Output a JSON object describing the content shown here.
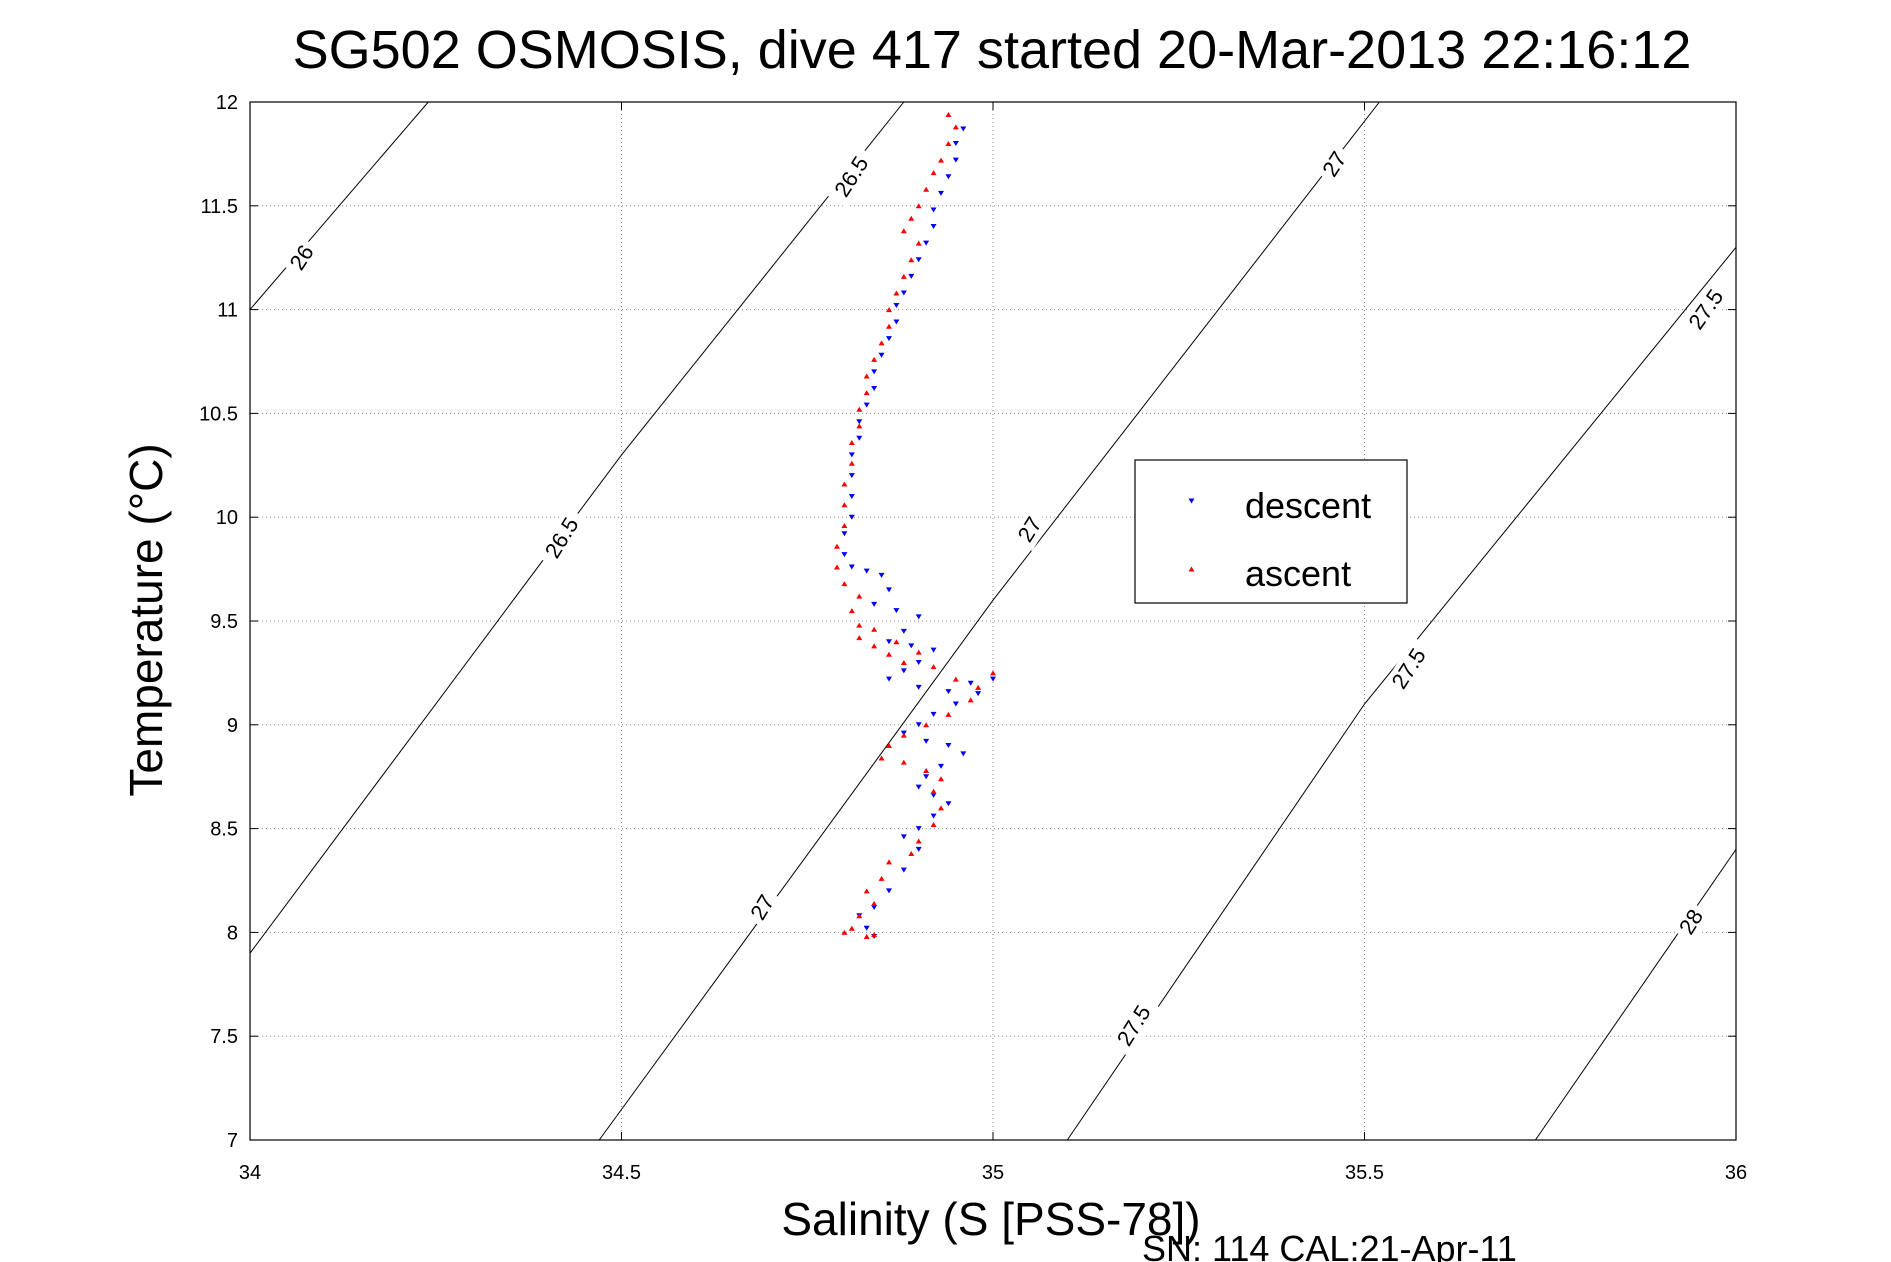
{
  "chart_data": {
    "type": "scatter",
    "title": "SG502 OSMOSIS, dive 417 started 20-Mar-2013 22:16:12",
    "xlabel": "Salinity (S [PSS-78])",
    "ylabel": "Temperature (°C)",
    "footer": "SN: 114  CAL:21-Apr-11",
    "xlim": [
      34,
      36
    ],
    "ylim": [
      7,
      12
    ],
    "xticks": [
      "34",
      "34.5",
      "35",
      "35.5",
      "36"
    ],
    "yticks": [
      "7",
      "7.5",
      "8",
      "8.5",
      "9",
      "9.5",
      "10",
      "10.5",
      "11",
      "11.5",
      "12"
    ],
    "grid": true,
    "legend_position": "center-right",
    "isopycnals": [
      {
        "label": "26",
        "points": [
          [
            34.0,
            11.0
          ],
          [
            34.24,
            12.0
          ]
        ]
      },
      {
        "label": "26.5",
        "points": [
          [
            34.0,
            7.9
          ],
          [
            34.5,
            10.3
          ],
          [
            34.88,
            12.0
          ]
        ]
      },
      {
        "label": "27",
        "points": [
          [
            34.47,
            7.0
          ],
          [
            35.0,
            9.6
          ],
          [
            35.52,
            12.0
          ]
        ]
      },
      {
        "label": "27.5",
        "points": [
          [
            35.1,
            7.0
          ],
          [
            35.5,
            9.1
          ],
          [
            36.0,
            11.3
          ]
        ]
      },
      {
        "label": "28",
        "points": [
          [
            35.73,
            7.0
          ],
          [
            36.0,
            8.4
          ]
        ]
      }
    ],
    "isopycnal_labels": [
      {
        "text": "26",
        "x": 34.07,
        "y": 11.25,
        "angle": -57
      },
      {
        "text": "26.5",
        "x": 34.81,
        "y": 11.64,
        "angle": -57
      },
      {
        "text": "26.5",
        "x": 34.42,
        "y": 9.9,
        "angle": -58
      },
      {
        "text": "27",
        "x": 35.46,
        "y": 11.7,
        "angle": -57
      },
      {
        "text": "27",
        "x": 35.05,
        "y": 9.94,
        "angle": -58
      },
      {
        "text": "27",
        "x": 34.69,
        "y": 8.12,
        "angle": -59
      },
      {
        "text": "27.5",
        "x": 35.96,
        "y": 11.0,
        "angle": -55
      },
      {
        "text": "27.5",
        "x": 35.56,
        "y": 9.27,
        "angle": -57
      },
      {
        "text": "27.5",
        "x": 35.19,
        "y": 7.55,
        "angle": -58
      },
      {
        "text": "28",
        "x": 35.94,
        "y": 8.05,
        "angle": -58
      }
    ],
    "series": [
      {
        "name": "descent",
        "marker": "triangle-down",
        "color": "#0000ff",
        "points": [
          [
            34.96,
            11.87
          ],
          [
            34.95,
            11.8
          ],
          [
            34.95,
            11.72
          ],
          [
            34.94,
            11.64
          ],
          [
            34.93,
            11.56
          ],
          [
            34.92,
            11.48
          ],
          [
            34.92,
            11.4
          ],
          [
            34.91,
            11.32
          ],
          [
            34.9,
            11.24
          ],
          [
            34.89,
            11.16
          ],
          [
            34.88,
            11.08
          ],
          [
            34.87,
            11.02
          ],
          [
            34.87,
            10.94
          ],
          [
            34.86,
            10.86
          ],
          [
            34.85,
            10.78
          ],
          [
            34.84,
            10.7
          ],
          [
            34.84,
            10.62
          ],
          [
            34.83,
            10.54
          ],
          [
            34.82,
            10.46
          ],
          [
            34.82,
            10.38
          ],
          [
            34.81,
            10.3
          ],
          [
            34.81,
            10.2
          ],
          [
            34.81,
            10.1
          ],
          [
            34.81,
            10.0
          ],
          [
            34.8,
            9.92
          ],
          [
            34.8,
            9.82
          ],
          [
            34.81,
            9.76
          ],
          [
            34.83,
            9.74
          ],
          [
            34.85,
            9.72
          ],
          [
            34.86,
            9.65
          ],
          [
            34.84,
            9.58
          ],
          [
            34.87,
            9.55
          ],
          [
            34.9,
            9.52
          ],
          [
            34.88,
            9.45
          ],
          [
            34.86,
            9.4
          ],
          [
            34.89,
            9.38
          ],
          [
            34.92,
            9.36
          ],
          [
            34.9,
            9.3
          ],
          [
            34.88,
            9.26
          ],
          [
            34.86,
            9.22
          ],
          [
            34.9,
            9.18
          ],
          [
            34.94,
            9.16
          ],
          [
            34.97,
            9.2
          ],
          [
            35.0,
            9.22
          ],
          [
            34.98,
            9.15
          ],
          [
            34.95,
            9.1
          ],
          [
            34.92,
            9.05
          ],
          [
            34.9,
            9.0
          ],
          [
            34.88,
            8.96
          ],
          [
            34.91,
            8.92
          ],
          [
            34.94,
            8.9
          ],
          [
            34.96,
            8.86
          ],
          [
            34.93,
            8.8
          ],
          [
            34.91,
            8.75
          ],
          [
            34.9,
            8.7
          ],
          [
            34.92,
            8.66
          ],
          [
            34.94,
            8.62
          ],
          [
            34.92,
            8.56
          ],
          [
            34.9,
            8.5
          ],
          [
            34.88,
            8.46
          ],
          [
            34.9,
            8.4
          ],
          [
            34.88,
            8.3
          ],
          [
            34.86,
            8.2
          ],
          [
            34.84,
            8.12
          ],
          [
            34.82,
            8.08
          ],
          [
            34.83,
            8.02
          ],
          [
            34.84,
            7.98
          ]
        ]
      },
      {
        "name": "ascent",
        "marker": "triangle-up",
        "color": "#ff0000",
        "points": [
          [
            34.94,
            11.94
          ],
          [
            34.95,
            11.88
          ],
          [
            34.94,
            11.8
          ],
          [
            34.93,
            11.72
          ],
          [
            34.92,
            11.66
          ],
          [
            34.91,
            11.58
          ],
          [
            34.9,
            11.5
          ],
          [
            34.89,
            11.44
          ],
          [
            34.88,
            11.38
          ],
          [
            34.9,
            11.32
          ],
          [
            34.89,
            11.24
          ],
          [
            34.88,
            11.16
          ],
          [
            34.87,
            11.08
          ],
          [
            34.86,
            11.0
          ],
          [
            34.86,
            10.92
          ],
          [
            34.85,
            10.84
          ],
          [
            34.84,
            10.76
          ],
          [
            34.83,
            10.68
          ],
          [
            34.83,
            10.6
          ],
          [
            34.82,
            10.52
          ],
          [
            34.82,
            10.44
          ],
          [
            34.81,
            10.36
          ],
          [
            34.81,
            10.26
          ],
          [
            34.8,
            10.16
          ],
          [
            34.8,
            10.06
          ],
          [
            34.8,
            9.96
          ],
          [
            34.79,
            9.86
          ],
          [
            34.79,
            9.76
          ],
          [
            34.8,
            9.68
          ],
          [
            34.82,
            9.62
          ],
          [
            34.81,
            9.55
          ],
          [
            34.82,
            9.48
          ],
          [
            34.82,
            9.42
          ],
          [
            34.84,
            9.38
          ],
          [
            34.86,
            9.34
          ],
          [
            34.88,
            9.3
          ],
          [
            34.9,
            9.35
          ],
          [
            34.87,
            9.4
          ],
          [
            34.84,
            9.46
          ],
          [
            34.92,
            9.28
          ],
          [
            34.95,
            9.22
          ],
          [
            34.98,
            9.18
          ],
          [
            35.0,
            9.25
          ],
          [
            34.97,
            9.12
          ],
          [
            34.94,
            9.05
          ],
          [
            34.91,
            9.0
          ],
          [
            34.88,
            8.95
          ],
          [
            34.86,
            8.9
          ],
          [
            34.85,
            8.84
          ],
          [
            34.88,
            8.82
          ],
          [
            34.91,
            8.78
          ],
          [
            34.93,
            8.74
          ],
          [
            34.92,
            8.68
          ],
          [
            34.93,
            8.6
          ],
          [
            34.92,
            8.52
          ],
          [
            34.9,
            8.44
          ],
          [
            34.89,
            8.38
          ],
          [
            34.86,
            8.34
          ],
          [
            34.85,
            8.26
          ],
          [
            34.83,
            8.2
          ],
          [
            34.84,
            8.14
          ],
          [
            34.82,
            8.08
          ],
          [
            34.81,
            8.02
          ],
          [
            34.8,
            8.0
          ],
          [
            34.83,
            7.98
          ],
          [
            34.84,
            7.99
          ]
        ]
      }
    ]
  }
}
